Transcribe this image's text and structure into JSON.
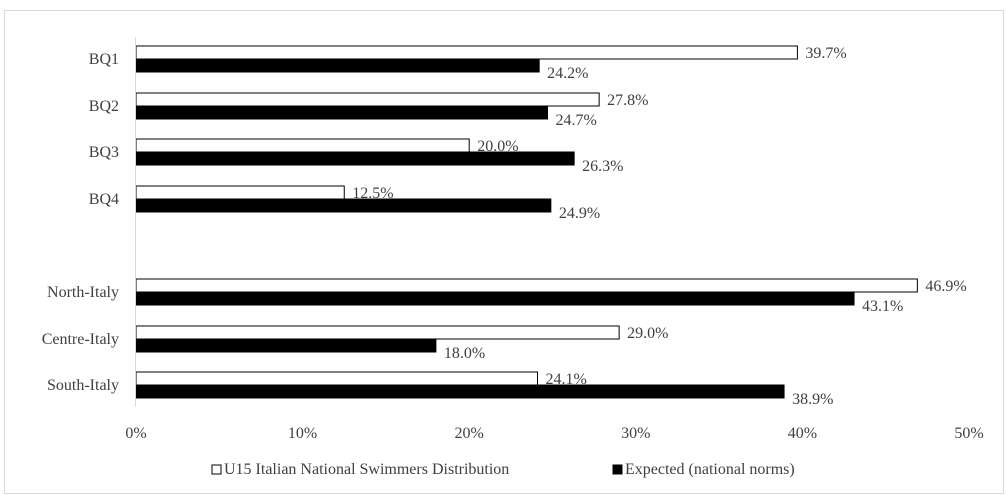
{
  "chart_data": {
    "type": "bar",
    "orientation": "horizontal",
    "categories": [
      "BQ1",
      "BQ2",
      "BQ3",
      "BQ4",
      "",
      "North-Italy",
      "Centre-Italy",
      "South-Italy"
    ],
    "series": [
      {
        "name": "U15 Italian National Swimmers Distribution",
        "color": "#ffffff",
        "values": [
          39.7,
          27.8,
          20.0,
          12.5,
          null,
          46.9,
          29.0,
          24.1
        ],
        "labels": [
          "39.7%",
          "27.8%",
          "20.0%",
          "12.5%",
          "",
          "46.9%",
          "29.0%",
          "24.1%"
        ]
      },
      {
        "name": "Expected (national norms)",
        "color": "#000000",
        "values": [
          24.2,
          24.7,
          26.3,
          24.9,
          null,
          43.1,
          18.0,
          38.9
        ],
        "labels": [
          "24.2%",
          "24.7%",
          "26.3%",
          "24.9%",
          "",
          "43.1%",
          "18.0%",
          "38.9%"
        ]
      }
    ],
    "xlim": [
      0,
      50
    ],
    "x_ticks": [
      "0%",
      "10%",
      "20%",
      "30%",
      "40%",
      "50%"
    ],
    "grid": false,
    "legend_position": "bottom"
  }
}
